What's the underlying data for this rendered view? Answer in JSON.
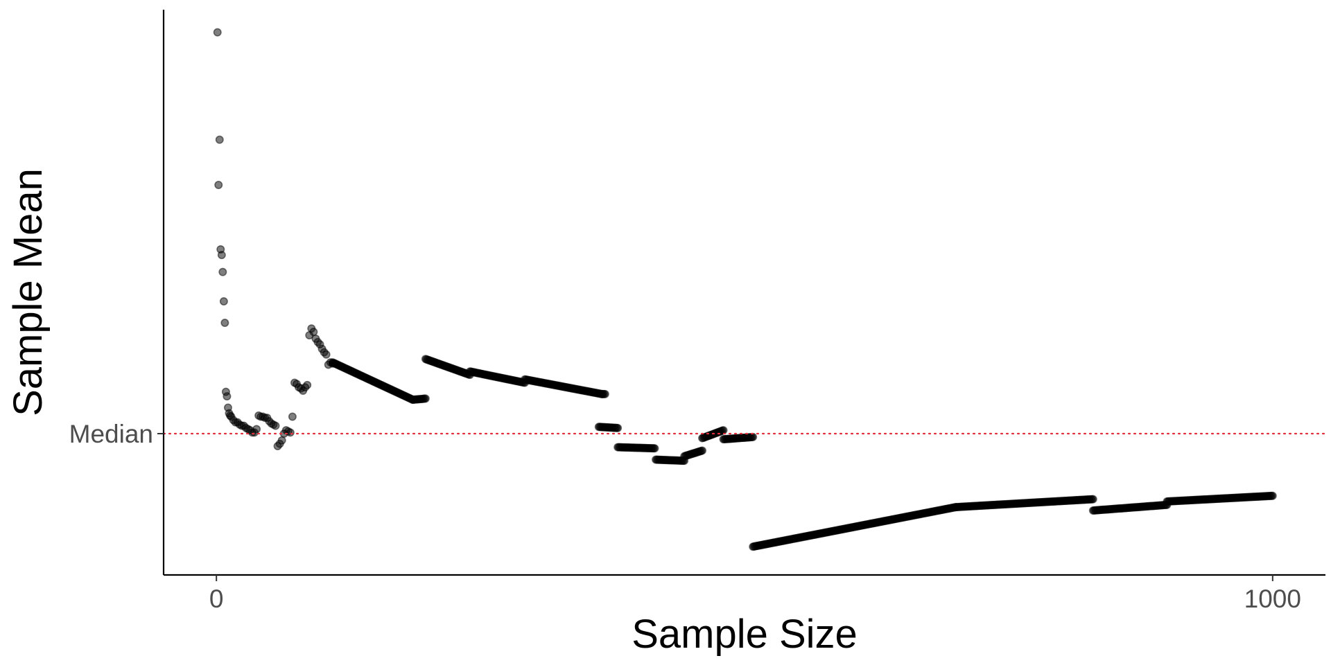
{
  "chart_data": {
    "type": "scatter",
    "title": "",
    "xlabel": "Sample Size",
    "ylabel": "Sample Mean",
    "xlim": [
      -50,
      1050
    ],
    "ylim": [
      -1.25,
      3.75
    ],
    "x_ticks": [
      {
        "value": 0,
        "label": "0"
      },
      {
        "value": 1000,
        "label": "1000"
      }
    ],
    "y_ticks": [
      {
        "value": 0,
        "label": "Median"
      }
    ],
    "reference_line": {
      "y": 0,
      "style": "dotted",
      "color": "#e0303a"
    },
    "point_color": "#000000",
    "point_opacity": 0.5,
    "grid": false,
    "legend": "none",
    "series": [
      {
        "points": [
          [
            1,
            3.55
          ],
          [
            2,
            2.2
          ],
          [
            3,
            2.6
          ],
          [
            4,
            1.63
          ],
          [
            5,
            1.58
          ],
          [
            6,
            1.43
          ],
          [
            7,
            1.17
          ],
          [
            8,
            0.98
          ],
          [
            9,
            0.37
          ],
          [
            10,
            0.33
          ],
          [
            11,
            0.23
          ],
          [
            12,
            0.18
          ],
          [
            13,
            0.16
          ],
          [
            14,
            0.15
          ],
          [
            16,
            0.12
          ],
          [
            18,
            0.1
          ],
          [
            20,
            0.1
          ],
          [
            22,
            0.08
          ],
          [
            24,
            0.07
          ],
          [
            26,
            0.07
          ],
          [
            28,
            0.05
          ],
          [
            30,
            0.04
          ],
          [
            32,
            0.03
          ],
          [
            34,
            0.01
          ],
          [
            36,
            0.01
          ],
          [
            38,
            0.04
          ],
          [
            40,
            0.16
          ],
          [
            42,
            0.15
          ],
          [
            44,
            0.15
          ],
          [
            46,
            0.14
          ],
          [
            48,
            0.14
          ],
          [
            50,
            0.11
          ],
          [
            52,
            0.09
          ],
          [
            54,
            0.08
          ],
          [
            56,
            0.07
          ],
          [
            58,
            -0.11
          ],
          [
            60,
            -0.09
          ],
          [
            62,
            -0.06
          ],
          [
            64,
            0.0
          ],
          [
            66,
            0.03
          ],
          [
            68,
            0.02
          ],
          [
            70,
            0.01
          ],
          [
            72,
            0.15
          ],
          [
            74,
            0.45
          ],
          [
            76,
            0.44
          ],
          [
            78,
            0.41
          ],
          [
            80,
            0.4
          ],
          [
            82,
            0.38
          ],
          [
            84,
            0.41
          ],
          [
            86,
            0.43
          ],
          [
            88,
            0.87
          ],
          [
            90,
            0.93
          ],
          [
            92,
            0.9
          ],
          [
            94,
            0.84
          ],
          [
            96,
            0.81
          ],
          [
            98,
            0.79
          ],
          [
            100,
            0.75
          ],
          [
            102,
            0.72
          ],
          [
            104,
            0.7
          ],
          [
            106,
            0.61
          ],
          [
            108,
            0.63
          ],
          [
            110,
            0.62
          ]
        ]
      }
    ],
    "segments": [
      {
        "x_start": 110,
        "x_end": 186,
        "y_start": 0.63,
        "y_end": 0.3
      },
      {
        "x_start": 186,
        "x_end": 198,
        "y_start": 0.3,
        "y_end": 0.31
      },
      {
        "x_start": 198,
        "x_end": 240,
        "y_start": 0.66,
        "y_end": 0.52
      },
      {
        "x_start": 240,
        "x_end": 292,
        "y_start": 0.55,
        "y_end": 0.45
      },
      {
        "x_start": 292,
        "x_end": 365,
        "y_start": 0.48,
        "y_end": 0.35
      },
      {
        "x_start": 365,
        "x_end": 368,
        "y_start": 0.35,
        "y_end": 0.35
      },
      {
        "x_start": 362,
        "x_end": 380,
        "y_start": 0.06,
        "y_end": 0.05
      },
      {
        "x_start": 380,
        "x_end": 415,
        "y_start": -0.12,
        "y_end": -0.13
      },
      {
        "x_start": 416,
        "x_end": 443,
        "y_start": -0.23,
        "y_end": -0.24
      },
      {
        "x_start": 443,
        "x_end": 460,
        "y_start": -0.2,
        "y_end": -0.15
      },
      {
        "x_start": 460,
        "x_end": 480,
        "y_start": -0.04,
        "y_end": 0.03
      },
      {
        "x_start": 480,
        "x_end": 508,
        "y_start": -0.05,
        "y_end": -0.03
      },
      {
        "x_start": 508,
        "x_end": 700,
        "y_start": -1.0,
        "y_end": -0.65
      },
      {
        "x_start": 700,
        "x_end": 830,
        "y_start": -0.65,
        "y_end": -0.58
      },
      {
        "x_start": 830,
        "x_end": 900,
        "y_start": -0.68,
        "y_end": -0.63
      },
      {
        "x_start": 900,
        "x_end": 1000,
        "y_start": -0.6,
        "y_end": -0.55
      }
    ]
  }
}
